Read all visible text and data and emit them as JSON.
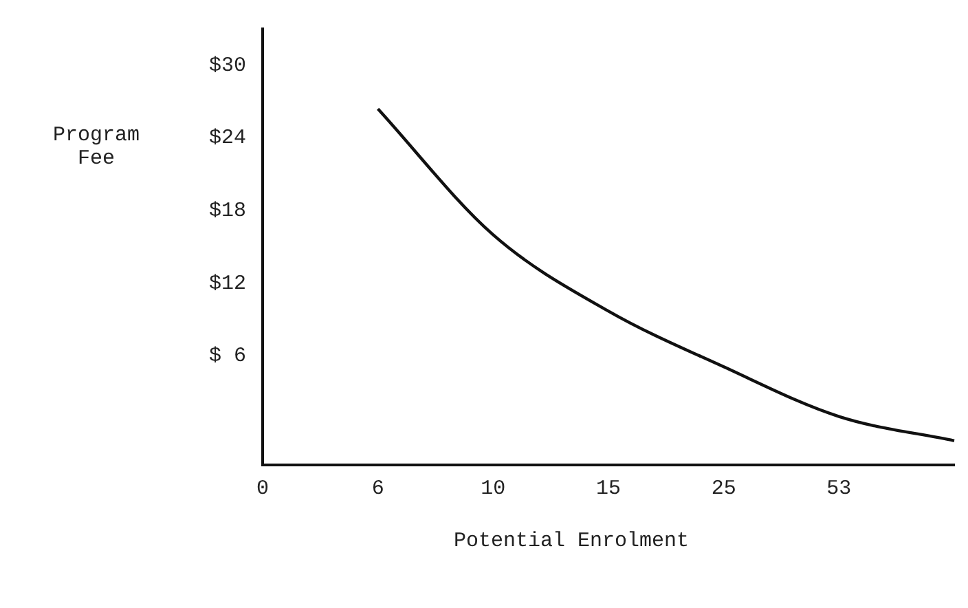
{
  "chart_data": {
    "type": "line",
    "xlabel": "Potential Enrolment",
    "ylabel": "Program\nFee",
    "categories": [
      "0",
      "6",
      "10",
      "15",
      "25",
      "53",
      null
    ],
    "series": [
      {
        "color": "#111111",
        "values": [
          null,
          26.4,
          16,
          9.7,
          5.1,
          1,
          -1
        ]
      }
    ],
    "ylim": [
      -3,
      33
    ],
    "yticks": [
      {
        "value": 6,
        "label": "$ 6"
      },
      {
        "value": 12,
        "label": "$12"
      },
      {
        "value": 18,
        "label": "$18"
      },
      {
        "value": 24,
        "label": "$24"
      },
      {
        "value": 30,
        "label": "$30"
      }
    ],
    "grid": false,
    "legend": false,
    "marker": "none",
    "line_style": "solid"
  }
}
